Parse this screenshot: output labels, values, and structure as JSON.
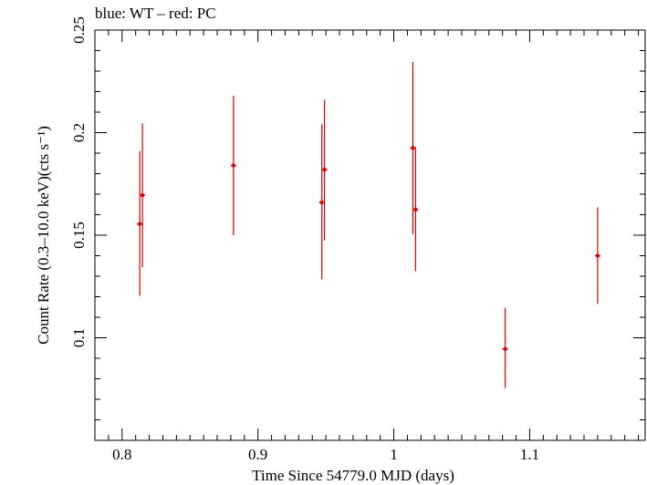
{
  "chart_data": {
    "type": "scatter",
    "title": "blue: WT – red: PC",
    "xlabel": "Time Since 54779.0 MJD (days)",
    "ylabel": "Count Rate (0.3–10.0 keV)(cts s⁻¹)",
    "xlim": [
      0.78,
      1.185
    ],
    "ylim": [
      0.05,
      0.25
    ],
    "x_ticks": [
      0.8,
      0.9,
      1,
      1.1
    ],
    "x_tick_labels": [
      "0.8",
      "0.9",
      "1",
      "1.1"
    ],
    "y_ticks": [
      0.1,
      0.15,
      0.2,
      0.25
    ],
    "y_tick_labels": [
      "0.1",
      "0.15",
      "0.2",
      "0.25"
    ],
    "grid": false,
    "series": [
      {
        "color": "#e00000",
        "points": [
          {
            "x": 0.813,
            "y": 0.1555,
            "y_low": 0.1205,
            "y_high": 0.191
          },
          {
            "x": 0.815,
            "y": 0.1695,
            "y_low": 0.1345,
            "y_high": 0.2045
          },
          {
            "x": 0.882,
            "y": 0.184,
            "y_low": 0.15,
            "y_high": 0.218
          },
          {
            "x": 0.947,
            "y": 0.166,
            "y_low": 0.1285,
            "y_high": 0.204
          },
          {
            "x": 0.949,
            "y": 0.182,
            "y_low": 0.1475,
            "y_high": 0.216
          },
          {
            "x": 1.014,
            "y": 0.1925,
            "y_low": 0.1505,
            "y_high": 0.2345
          },
          {
            "x": 1.016,
            "y": 0.1625,
            "y_low": 0.1325,
            "y_high": 0.193
          },
          {
            "x": 1.082,
            "y": 0.0945,
            "y_low": 0.0755,
            "y_high": 0.1145
          },
          {
            "x": 1.15,
            "y": 0.14,
            "y_low": 0.1165,
            "y_high": 0.1635
          }
        ]
      }
    ]
  }
}
